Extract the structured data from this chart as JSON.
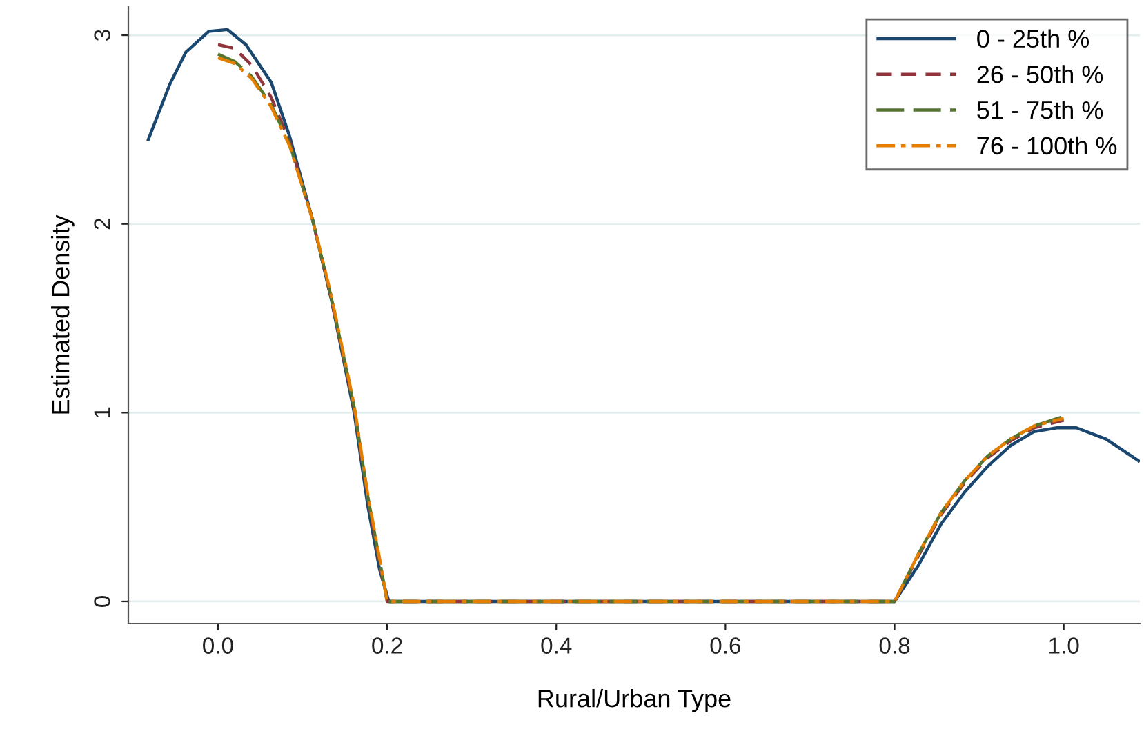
{
  "chart_data": {
    "type": "line",
    "xlabel": "Rural/Urban Type",
    "ylabel": "Estimated Density",
    "xlim": [
      -0.106,
      1.09
    ],
    "ylim": [
      -0.117,
      3.15
    ],
    "xticks": [
      {
        "value": 0,
        "label": "0.0"
      },
      0.2,
      0.4,
      0.6,
      0.8,
      {
        "value": 1,
        "label": "1.0"
      }
    ],
    "yticks": [
      0,
      1,
      2,
      3
    ],
    "grid": "y",
    "legend": "top right",
    "series": [
      {
        "name": "0 - 25th %",
        "color": "#1a476f",
        "line_style": "solid",
        "x": [
          -0.083,
          -0.057,
          -0.038,
          -0.011,
          0.011,
          0.033,
          0.063,
          0.085,
          0.112,
          0.134,
          0.161,
          0.177,
          0.191,
          0.202,
          0.4,
          0.6,
          0.8,
          0.828,
          0.855,
          0.883,
          0.91,
          0.937,
          0.965,
          0.992,
          1.015,
          1.05,
          1.09
        ],
        "values": [
          2.44,
          2.74,
          2.91,
          3.02,
          3.03,
          2.95,
          2.75,
          2.46,
          2.02,
          1.6,
          1.0,
          0.51,
          0.17,
          0,
          0,
          0,
          0,
          0.19,
          0.41,
          0.58,
          0.715,
          0.825,
          0.9,
          0.92,
          0.92,
          0.86,
          0.74
        ]
      },
      {
        "name": "26 - 50th %",
        "color": "#90353b",
        "line_style": "dashed",
        "x": [
          0,
          0.02,
          0.04,
          0.063,
          0.085,
          0.112,
          0.134,
          0.161,
          0.177,
          0.191,
          0.2,
          0.4,
          0.6,
          0.8,
          0.828,
          0.855,
          0.883,
          0.91,
          0.937,
          0.965,
          1.0
        ],
        "values": [
          2.95,
          2.93,
          2.84,
          2.67,
          2.43,
          2.02,
          1.6,
          1.02,
          0.55,
          0.2,
          0,
          0,
          0,
          0,
          0.24,
          0.46,
          0.63,
          0.76,
          0.85,
          0.92,
          0.96
        ]
      },
      {
        "name": "51 - 75th %",
        "color": "#55752f",
        "line_style": "longdash",
        "x": [
          0,
          0.02,
          0.04,
          0.063,
          0.085,
          0.112,
          0.134,
          0.161,
          0.177,
          0.191,
          0.2,
          0.4,
          0.6,
          0.8,
          0.828,
          0.855,
          0.883,
          0.91,
          0.937,
          0.965,
          1.0
        ],
        "values": [
          2.9,
          2.86,
          2.78,
          2.63,
          2.42,
          2.02,
          1.61,
          1.03,
          0.56,
          0.22,
          0,
          0,
          0,
          0,
          0.25,
          0.47,
          0.64,
          0.77,
          0.86,
          0.93,
          0.98
        ]
      },
      {
        "name": "76 - 100th %",
        "color": "#e37e00",
        "line_style": "dashdot",
        "x": [
          0,
          0.02,
          0.04,
          0.063,
          0.085,
          0.112,
          0.134,
          0.161,
          0.177,
          0.191,
          0.2,
          0.4,
          0.6,
          0.8,
          0.828,
          0.855,
          0.883,
          0.91,
          0.937,
          0.965,
          1.0
        ],
        "values": [
          2.88,
          2.85,
          2.77,
          2.62,
          2.41,
          2.02,
          1.62,
          1.04,
          0.57,
          0.23,
          0,
          0,
          0,
          0,
          0.25,
          0.47,
          0.64,
          0.77,
          0.86,
          0.93,
          0.97
        ]
      }
    ]
  }
}
